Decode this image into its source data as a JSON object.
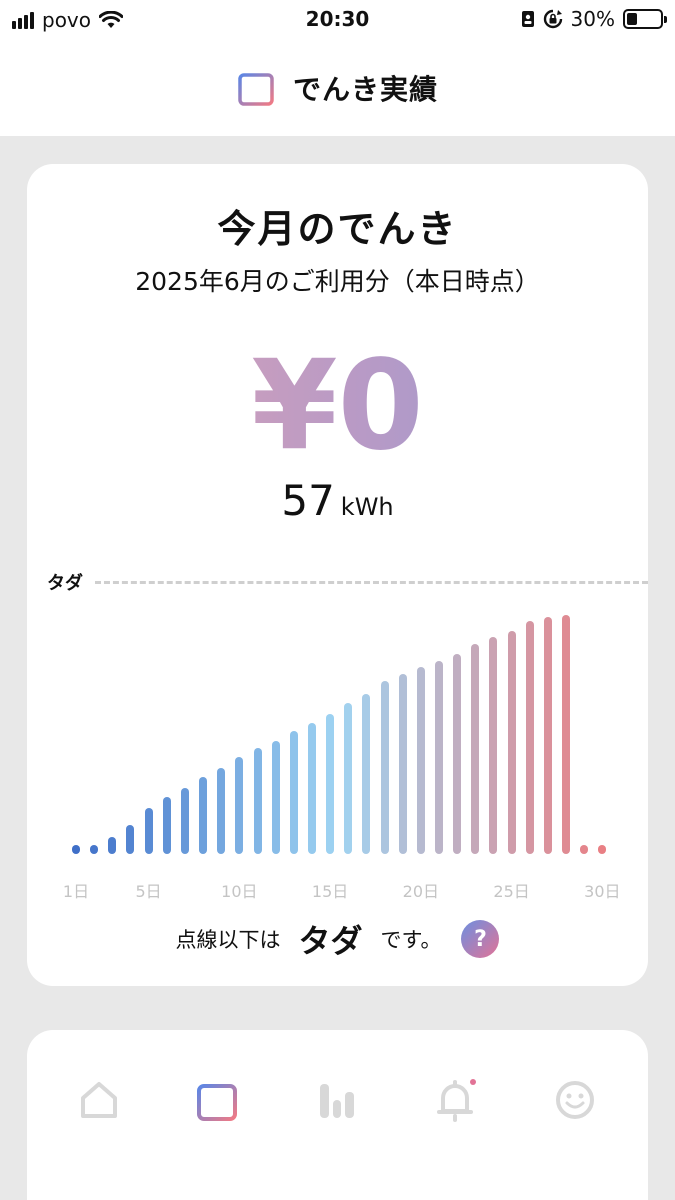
{
  "status_bar": {
    "carrier": "povo",
    "time": "20:30",
    "battery": "30%",
    "battery_level": 0.3
  },
  "header": {
    "title": "でんき実績",
    "icon": "calendar-icon"
  },
  "card": {
    "title": "今月のでんき",
    "subtitle": "2025年6月のご利用分（本日時点）",
    "price": "¥0",
    "usage_value": "57",
    "usage_unit": "kWh",
    "free_line_label": "タダ",
    "note_before": "点線以下は",
    "note_emphasis": "タダ",
    "note_after": "です。",
    "help_label": "?"
  },
  "chart_data": {
    "type": "bar",
    "x_ticks": [
      "1日",
      "5日",
      "10日",
      "15日",
      "20日",
      "25日",
      "30日"
    ],
    "x": [
      1,
      2,
      3,
      4,
      5,
      6,
      7,
      8,
      9,
      10,
      11,
      12,
      13,
      14,
      15,
      16,
      17,
      18,
      19,
      20,
      21,
      22,
      23,
      24,
      25,
      26,
      27,
      28,
      29,
      30
    ],
    "values": [
      0.6,
      0.6,
      1.2,
      2.0,
      3.2,
      4.0,
      4.6,
      5.4,
      6.0,
      6.8,
      7.4,
      7.9,
      8.6,
      9.2,
      9.8,
      10.6,
      11.2,
      12.1,
      12.6,
      13.1,
      13.5,
      14.0,
      14.7,
      15.2,
      15.6,
      16.3,
      16.6,
      16.7,
      0.6,
      0.6
    ],
    "ylim": [
      0,
      17.5
    ],
    "colors": {
      "start": "#3f6fc8",
      "mid": "#9fd4f2",
      "end": "#e97f84"
    }
  },
  "nav": {
    "items": [
      {
        "name": "home-icon",
        "active": false
      },
      {
        "name": "calendar-icon",
        "active": true
      },
      {
        "name": "bar-chart-icon",
        "active": false
      },
      {
        "name": "bell-icon",
        "active": false
      },
      {
        "name": "smiley-icon",
        "active": false
      }
    ]
  }
}
